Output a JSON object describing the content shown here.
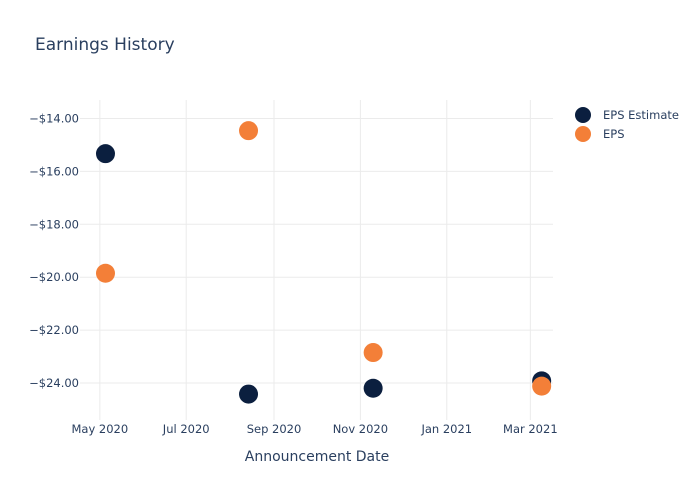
{
  "chart_data": {
    "type": "scatter",
    "title": "Earnings History",
    "xlabel": "Announcement Date",
    "ylabel": "",
    "x_ticks": [
      "May 2020",
      "Jul 2020",
      "Sep 2020",
      "Nov 2020",
      "Jan 2021",
      "Mar 2021"
    ],
    "y_ticks": [
      "−$14.00",
      "−$16.00",
      "−$18.00",
      "−$20.00",
      "−$22.00",
      "−$24.00"
    ],
    "xlim": [
      "2020-04-17",
      "2021-03-17"
    ],
    "ylim": [
      -25.4,
      -13.3
    ],
    "grid": true,
    "legend_position": "top-right",
    "series": [
      {
        "name": "EPS Estimate",
        "color": "#0b1f3f",
        "points": [
          {
            "x": "2020-05-05",
            "y": -15.33
          },
          {
            "x": "2020-08-14",
            "y": -24.42
          },
          {
            "x": "2020-11-10",
            "y": -24.2
          },
          {
            "x": "2021-03-09",
            "y": -23.92
          }
        ]
      },
      {
        "name": "EPS",
        "color": "#f37f38",
        "points": [
          {
            "x": "2020-05-05",
            "y": -19.85
          },
          {
            "x": "2020-08-14",
            "y": -14.46
          },
          {
            "x": "2020-11-10",
            "y": -22.85
          },
          {
            "x": "2021-03-09",
            "y": -24.12
          }
        ]
      }
    ]
  }
}
